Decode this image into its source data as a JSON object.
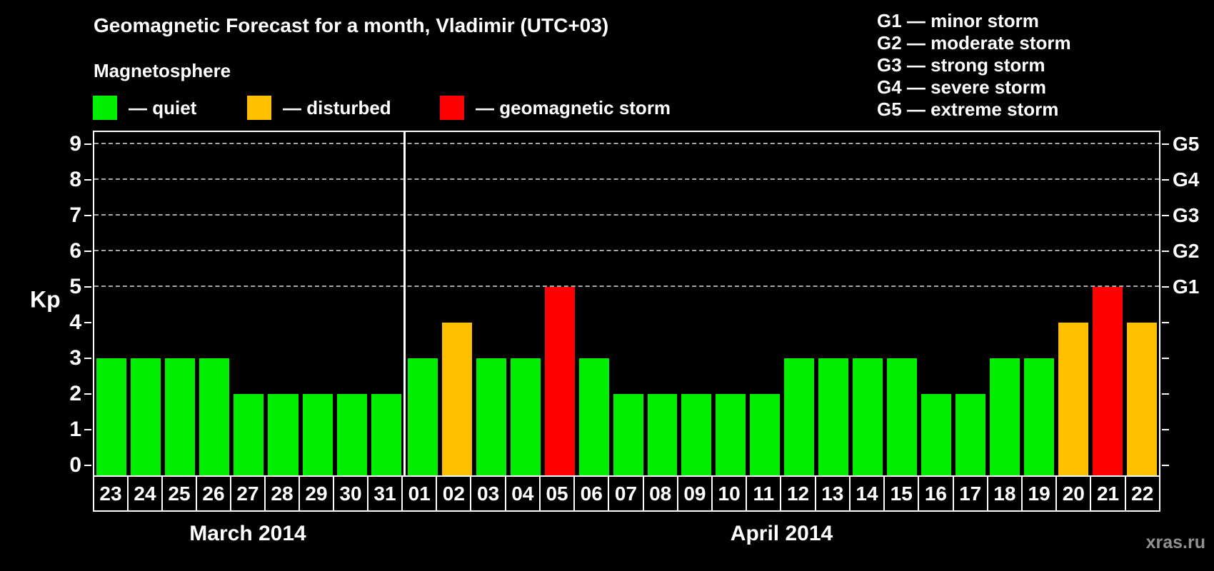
{
  "page": {
    "background": "#000000",
    "watermark": "xras.ru"
  },
  "header": {
    "title": "Geomagnetic Forecast for a month, Vladimir (UTC+03)"
  },
  "legend": {
    "heading": "Magnetosphere",
    "items": [
      {
        "key": "quiet",
        "label": "— quiet",
        "color": "#00ee00"
      },
      {
        "key": "disturbed",
        "label": "— disturbed",
        "color": "#ffc000"
      },
      {
        "key": "storm",
        "label": "— geomagnetic storm",
        "color": "#ff0000"
      }
    ]
  },
  "g_scale_legend": [
    "G1 — minor storm",
    "G2 — moderate storm",
    "G3 — strong storm",
    "G4 — severe storm",
    "G5 — extreme storm"
  ],
  "chart_data": {
    "type": "bar",
    "title": "Geomagnetic Forecast for a month, Vladimir (UTC+03)",
    "xlabel": "",
    "ylabel": "Kp",
    "ylim": [
      0,
      9
    ],
    "yticks": [
      0,
      1,
      2,
      3,
      4,
      5,
      6,
      7,
      8,
      9
    ],
    "gridlines_at_kp": [
      5,
      6,
      7,
      8,
      9
    ],
    "grid_style": "dashed horizontal lines at Kp 5-9 only",
    "legend_position": "top-left",
    "right_axis_labels": [
      {
        "label": "G1",
        "kp": 5
      },
      {
        "label": "G2",
        "kp": 6
      },
      {
        "label": "G3",
        "kp": 7
      },
      {
        "label": "G4",
        "kp": 8
      },
      {
        "label": "G5",
        "kp": 9
      }
    ],
    "months": [
      {
        "label": "March 2014",
        "days": [
          {
            "day": "23",
            "kp": 3,
            "status": "quiet"
          },
          {
            "day": "24",
            "kp": 3,
            "status": "quiet"
          },
          {
            "day": "25",
            "kp": 3,
            "status": "quiet"
          },
          {
            "day": "26",
            "kp": 3,
            "status": "quiet"
          },
          {
            "day": "27",
            "kp": 2,
            "status": "quiet"
          },
          {
            "day": "28",
            "kp": 2,
            "status": "quiet"
          },
          {
            "day": "29",
            "kp": 2,
            "status": "quiet"
          },
          {
            "day": "30",
            "kp": 2,
            "status": "quiet"
          },
          {
            "day": "31",
            "kp": 2,
            "status": "quiet"
          }
        ]
      },
      {
        "label": "April 2014",
        "days": [
          {
            "day": "01",
            "kp": 3,
            "status": "quiet"
          },
          {
            "day": "02",
            "kp": 4,
            "status": "disturbed"
          },
          {
            "day": "03",
            "kp": 3,
            "status": "quiet"
          },
          {
            "day": "04",
            "kp": 3,
            "status": "quiet"
          },
          {
            "day": "05",
            "kp": 5,
            "status": "storm"
          },
          {
            "day": "06",
            "kp": 3,
            "status": "quiet"
          },
          {
            "day": "07",
            "kp": 2,
            "status": "quiet"
          },
          {
            "day": "08",
            "kp": 2,
            "status": "quiet"
          },
          {
            "day": "09",
            "kp": 2,
            "status": "quiet"
          },
          {
            "day": "10",
            "kp": 2,
            "status": "quiet"
          },
          {
            "day": "11",
            "kp": 2,
            "status": "quiet"
          },
          {
            "day": "12",
            "kp": 3,
            "status": "quiet"
          },
          {
            "day": "13",
            "kp": 3,
            "status": "quiet"
          },
          {
            "day": "14",
            "kp": 3,
            "status": "quiet"
          },
          {
            "day": "15",
            "kp": 3,
            "status": "quiet"
          },
          {
            "day": "16",
            "kp": 2,
            "status": "quiet"
          },
          {
            "day": "17",
            "kp": 2,
            "status": "quiet"
          },
          {
            "day": "18",
            "kp": 3,
            "status": "quiet"
          },
          {
            "day": "19",
            "kp": 3,
            "status": "quiet"
          },
          {
            "day": "20",
            "kp": 4,
            "status": "disturbed"
          },
          {
            "day": "21",
            "kp": 5,
            "status": "storm"
          },
          {
            "day": "22",
            "kp": 4,
            "status": "disturbed"
          }
        ]
      }
    ]
  }
}
